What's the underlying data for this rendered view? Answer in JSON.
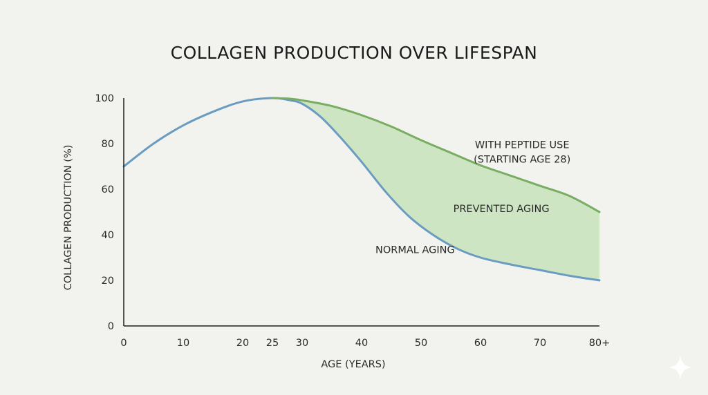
{
  "chart_data": {
    "type": "line",
    "title": "COLLAGEN PRODUCTION OVER LIFESPAN",
    "xlabel": "AGE (YEARS)",
    "ylabel": "COLLAGEN PRODUCTION (%)",
    "xlim": [
      0,
      80
    ],
    "ylim": [
      0,
      100
    ],
    "x_ticks": [
      {
        "value": 0,
        "label": "0"
      },
      {
        "value": 10,
        "label": "10"
      },
      {
        "value": 20,
        "label": "20"
      },
      {
        "value": 25,
        "label": "25"
      },
      {
        "value": 30,
        "label": "30"
      },
      {
        "value": 40,
        "label": "40"
      },
      {
        "value": 50,
        "label": "50"
      },
      {
        "value": 60,
        "label": "60"
      },
      {
        "value": 70,
        "label": "70"
      },
      {
        "value": 80,
        "label": "80+"
      }
    ],
    "y_ticks": [
      {
        "value": 0,
        "label": "0"
      },
      {
        "value": 20,
        "label": "20"
      },
      {
        "value": 40,
        "label": "40"
      },
      {
        "value": 60,
        "label": "60"
      },
      {
        "value": 80,
        "label": "80"
      },
      {
        "value": 100,
        "label": "100"
      }
    ],
    "grid": false,
    "series": [
      {
        "key": "normal",
        "color": "#6a9bc1",
        "points": [
          [
            0,
            70
          ],
          [
            5,
            80
          ],
          [
            10,
            88
          ],
          [
            15,
            94
          ],
          [
            20,
            98.5
          ],
          [
            25,
            100
          ],
          [
            28,
            99
          ],
          [
            30,
            97.5
          ],
          [
            33,
            92
          ],
          [
            36,
            84
          ],
          [
            40,
            72
          ],
          [
            44,
            59
          ],
          [
            48,
            48
          ],
          [
            52,
            40
          ],
          [
            56,
            34
          ],
          [
            60,
            30
          ],
          [
            65,
            27
          ],
          [
            70,
            24.5
          ],
          [
            75,
            22
          ],
          [
            80,
            20
          ]
        ]
      },
      {
        "key": "peptide",
        "color": "#79ad62",
        "points": [
          [
            25,
            100
          ],
          [
            28,
            99.7
          ],
          [
            30,
            99
          ],
          [
            35,
            96.5
          ],
          [
            40,
            92.5
          ],
          [
            45,
            87.5
          ],
          [
            50,
            81.5
          ],
          [
            55,
            76
          ],
          [
            60,
            70.5
          ],
          [
            65,
            66
          ],
          [
            70,
            61.5
          ],
          [
            75,
            57
          ],
          [
            80,
            50
          ]
        ]
      }
    ],
    "fill_between": {
      "color": "#cde5c3",
      "from_x": 25,
      "to_x": 80
    },
    "annotations": [
      {
        "key": "peptide",
        "lines": [
          "WITH PEPTIDE USE",
          "(STARTING AGE 28)"
        ],
        "x": 67,
        "y": 78
      },
      {
        "key": "prevented",
        "lines": [
          "PREVENTED AGING"
        ],
        "x": 63.5,
        "y": 50
      },
      {
        "key": "normal",
        "lines": [
          "NORMAL AGING"
        ],
        "x": 49,
        "y": 32
      }
    ]
  }
}
